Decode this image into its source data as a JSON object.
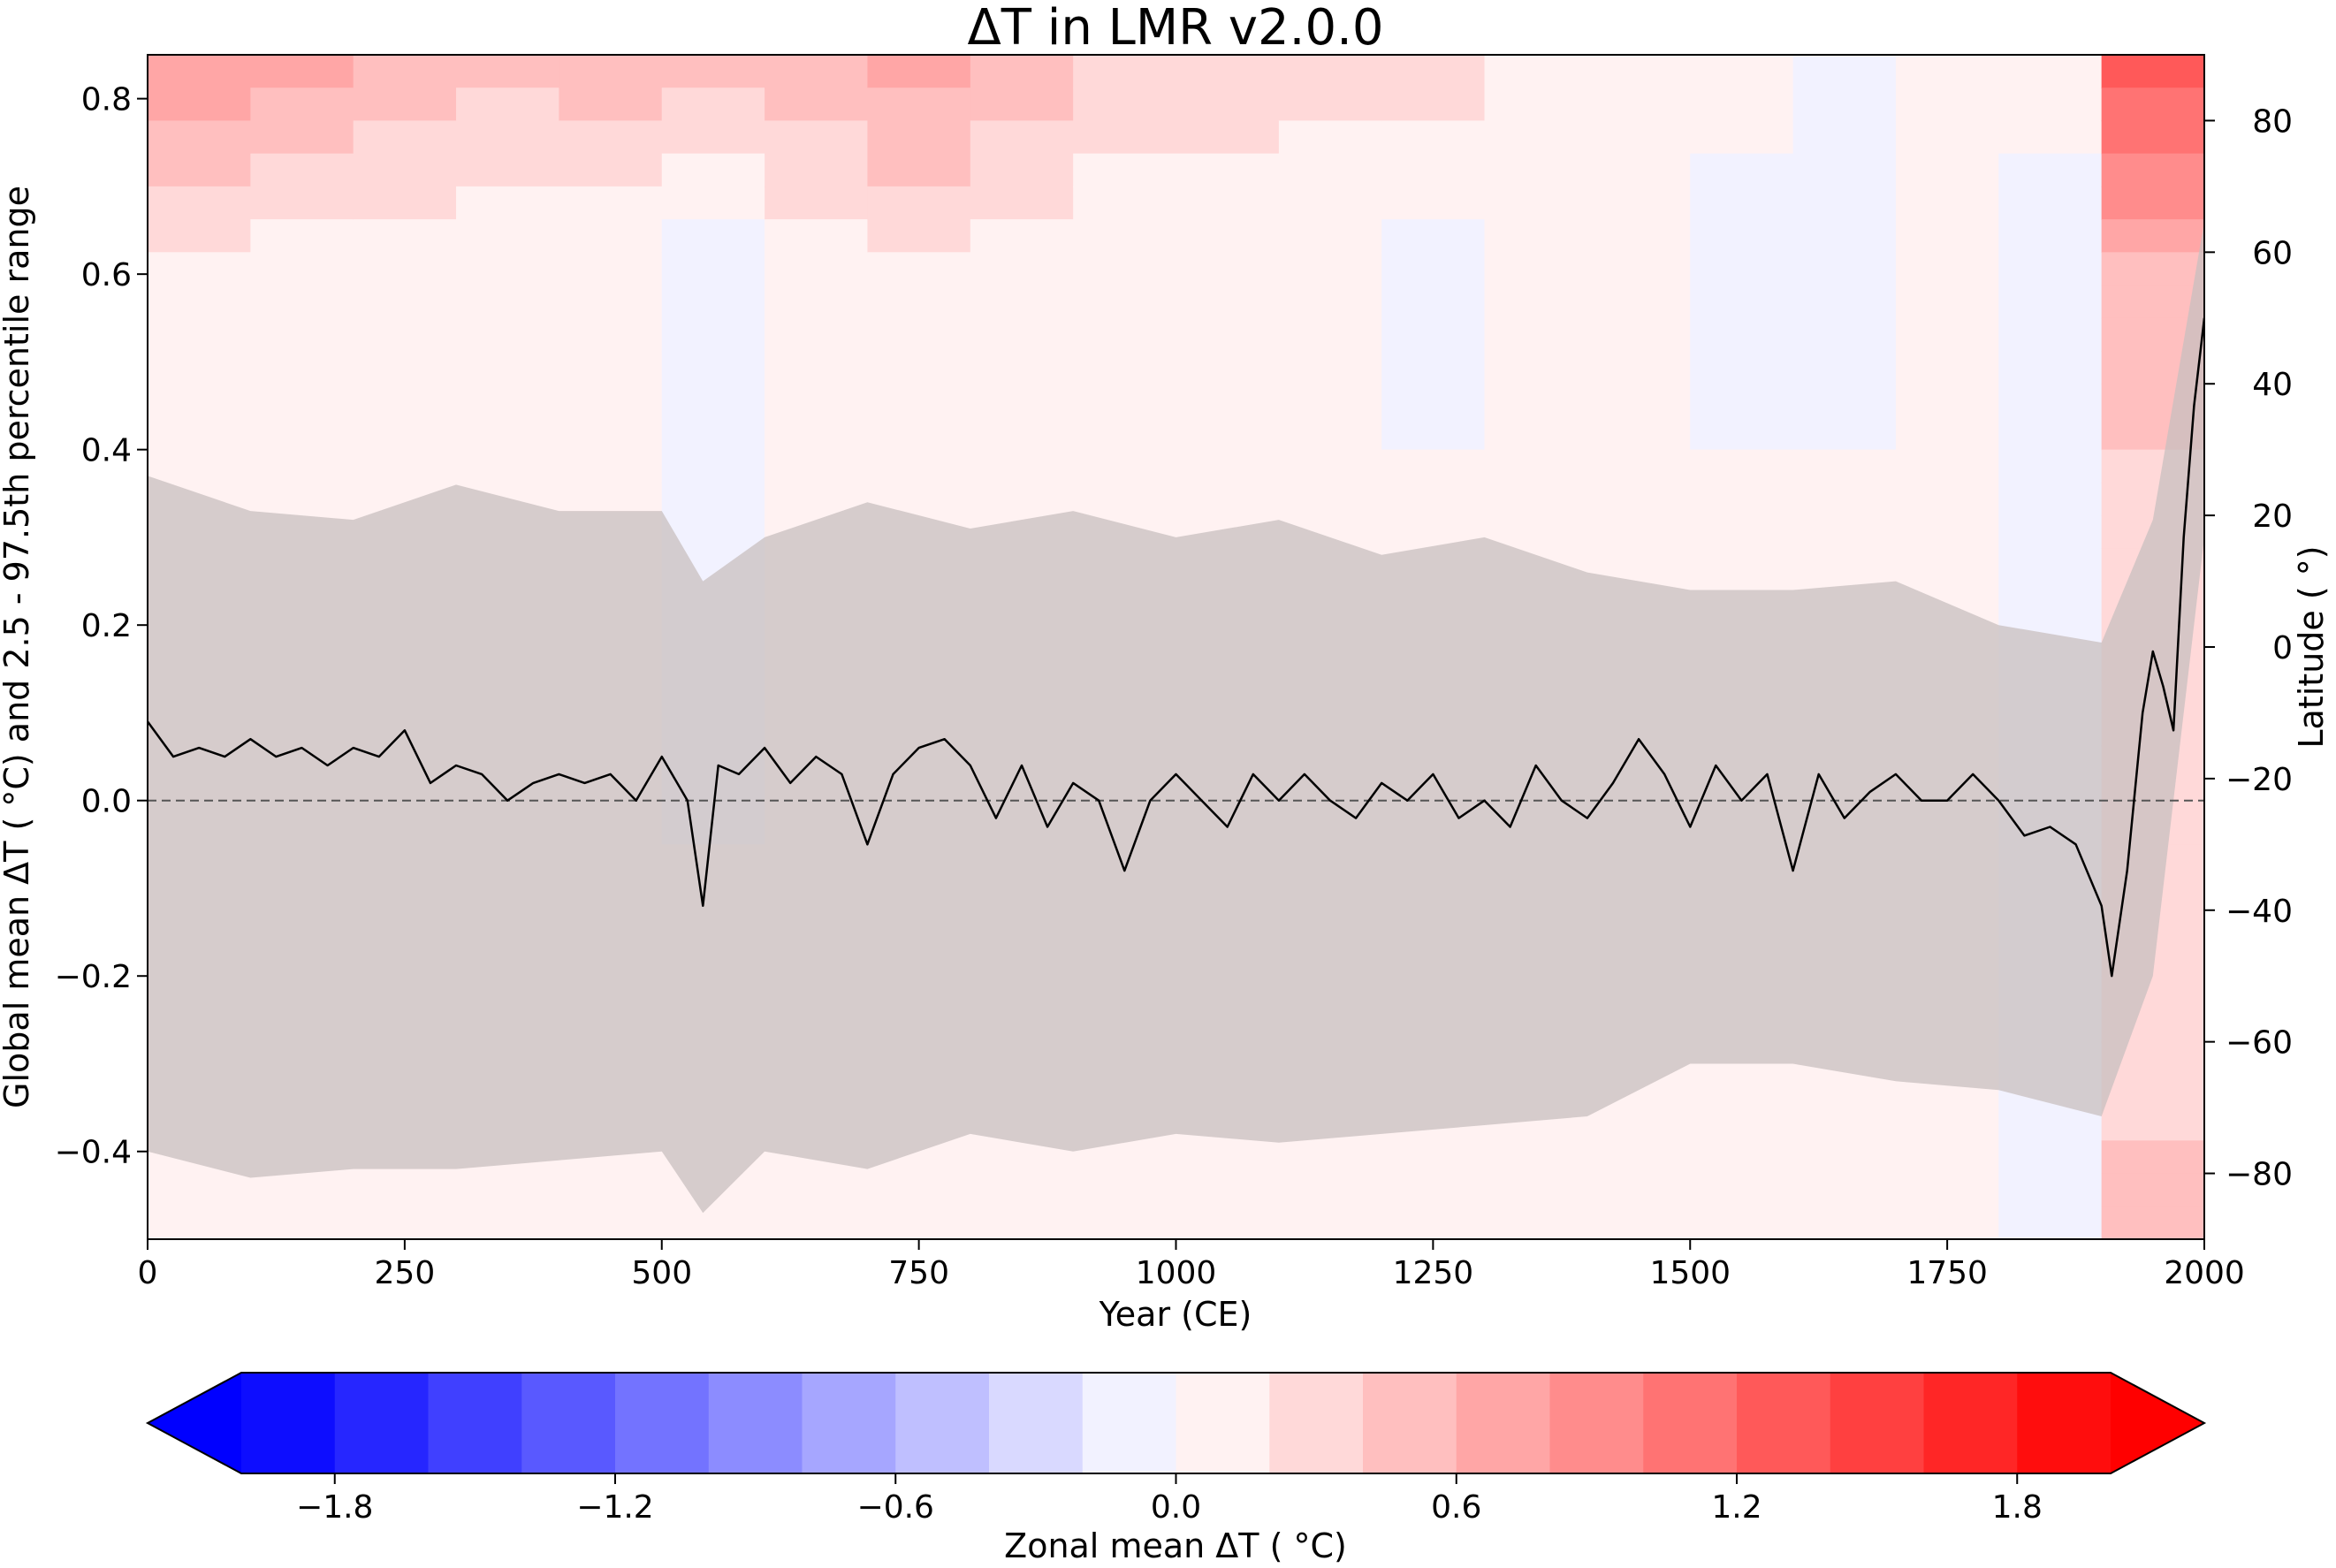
{
  "chart_data": {
    "type": "heatmap",
    "title": "ΔT in LMR v2.0.0",
    "xlabel": "Year (CE)",
    "ylabel": "Global mean ΔT ($^\\circ$C) and 2.5 - 97.5th percentile range",
    "ylabel_display": "Global mean ΔT ( °C) and 2.5 - 97.5th percentile range",
    "y2label": "Latitude ( °)",
    "xlim": [
      0,
      2000
    ],
    "ylim": [
      -0.5,
      0.85
    ],
    "y2lim": [
      -90,
      90
    ],
    "x_ticks": [
      0,
      250,
      500,
      750,
      1000,
      1250,
      1500,
      1750,
      2000
    ],
    "y_ticks": [
      -0.4,
      -0.2,
      0.0,
      0.2,
      0.4,
      0.6,
      0.8
    ],
    "y_tick_labels": [
      "−0.4",
      "−0.2",
      "0.0",
      "0.2",
      "0.4",
      "0.6",
      "0.8"
    ],
    "y2_ticks": [
      -80,
      -60,
      -40,
      -20,
      0,
      20,
      40,
      60,
      80
    ],
    "y2_tick_labels": [
      "−80",
      "−60",
      "−40",
      "−20",
      "0",
      "20",
      "40",
      "60",
      "80"
    ],
    "x_tick_labels": [
      "0",
      "250",
      "500",
      "750",
      "1000",
      "1250",
      "1500",
      "1750",
      "2000"
    ],
    "reference_line": {
      "y": 0.0,
      "style": "dashed",
      "color": "#555555"
    },
    "heatmap": {
      "description_key": "zonal mean ΔT by year and latitude",
      "note_values_sampled": "values per 100-year block, latitude bands from north to south",
      "latitude_bands": [
        90,
        60,
        30,
        0,
        -30,
        -60,
        -90
      ],
      "centuries": [
        0,
        100,
        200,
        300,
        400,
        500,
        600,
        700,
        800,
        900,
        1000,
        1100,
        1200,
        1300,
        1400,
        1500,
        1600,
        1700,
        1800,
        1900
      ],
      "values": [
        [
          0.8,
          0.7,
          0.6,
          0.5,
          0.6,
          0.5,
          0.5,
          0.7,
          0.6,
          0.4,
          0.4,
          0.3,
          0.3,
          0.2,
          0.2,
          0.1,
          0.0,
          0.1,
          0.1,
          1.4
        ],
        [
          0.2,
          0.1,
          0.1,
          0.0,
          0.0,
          -0.1,
          0.1,
          0.2,
          0.1,
          0.0,
          0.0,
          0.0,
          -0.1,
          0.0,
          0.0,
          -0.1,
          -0.1,
          0.0,
          -0.1,
          0.6
        ],
        [
          0.0,
          0.0,
          0.0,
          0.0,
          0.0,
          0.0,
          0.0,
          0.0,
          0.0,
          0.0,
          0.0,
          0.0,
          0.0,
          0.0,
          0.0,
          0.0,
          0.0,
          0.0,
          -0.1,
          0.4
        ],
        [
          0.05,
          0.0,
          0.05,
          0.0,
          0.0,
          -0.05,
          0.0,
          0.05,
          0.0,
          0.0,
          0.0,
          0.0,
          0.0,
          0.0,
          0.0,
          0.0,
          0.0,
          0.0,
          -0.05,
          0.3
        ],
        [
          0.0,
          0.0,
          0.0,
          0.0,
          0.0,
          0.0,
          0.0,
          0.0,
          0.0,
          0.0,
          0.0,
          0.0,
          0.0,
          0.0,
          0.0,
          0.0,
          0.0,
          0.0,
          -0.1,
          0.3
        ],
        [
          0.05,
          0.0,
          0.0,
          0.0,
          0.05,
          0.0,
          0.05,
          0.0,
          0.05,
          0.0,
          0.0,
          0.05,
          0.0,
          0.0,
          0.0,
          0.0,
          0.0,
          0.0,
          -0.2,
          0.3
        ],
        [
          0.1,
          0.1,
          0.1,
          0.1,
          0.1,
          0.1,
          0.1,
          0.1,
          0.1,
          0.1,
          0.1,
          0.1,
          0.1,
          0.05,
          0.05,
          0.05,
          0.05,
          0.05,
          -0.1,
          0.5
        ]
      ]
    },
    "series": [
      {
        "name": "Global mean ΔT",
        "color": "#000000",
        "x": [
          0,
          25,
          50,
          75,
          100,
          125,
          150,
          175,
          200,
          225,
          250,
          275,
          300,
          325,
          350,
          375,
          400,
          425,
          450,
          475,
          500,
          525,
          540,
          555,
          575,
          600,
          625,
          650,
          675,
          700,
          725,
          750,
          775,
          800,
          825,
          850,
          875,
          900,
          925,
          950,
          975,
          1000,
          1025,
          1050,
          1075,
          1100,
          1125,
          1150,
          1175,
          1200,
          1225,
          1250,
          1275,
          1300,
          1325,
          1350,
          1375,
          1400,
          1425,
          1450,
          1475,
          1500,
          1525,
          1550,
          1575,
          1600,
          1625,
          1650,
          1675,
          1700,
          1725,
          1750,
          1775,
          1800,
          1825,
          1850,
          1875,
          1900,
          1910,
          1925,
          1940,
          1950,
          1960,
          1970,
          1980,
          1990,
          2000
        ],
        "y": [
          0.09,
          0.05,
          0.06,
          0.05,
          0.07,
          0.05,
          0.06,
          0.04,
          0.06,
          0.05,
          0.08,
          0.02,
          0.04,
          0.03,
          0.0,
          0.02,
          0.03,
          0.02,
          0.03,
          0.0,
          0.05,
          0.0,
          -0.12,
          0.04,
          0.03,
          0.06,
          0.02,
          0.05,
          0.03,
          -0.05,
          0.03,
          0.06,
          0.07,
          0.04,
          -0.02,
          0.04,
          -0.03,
          0.02,
          0.0,
          -0.08,
          0.0,
          0.03,
          0.0,
          -0.03,
          0.03,
          0.0,
          0.03,
          0.0,
          -0.02,
          0.02,
          0.0,
          0.03,
          -0.02,
          0.0,
          -0.03,
          0.04,
          0.0,
          -0.02,
          0.02,
          0.07,
          0.03,
          -0.03,
          0.04,
          0.0,
          0.03,
          -0.08,
          0.03,
          -0.02,
          0.01,
          0.03,
          0.0,
          0.0,
          0.03,
          0.0,
          -0.04,
          -0.03,
          -0.05,
          -0.12,
          -0.2,
          -0.08,
          0.1,
          0.17,
          0.13,
          0.08,
          0.3,
          0.45,
          0.55
        ]
      }
    ],
    "bands": [
      {
        "name": "2.5 - 97.5th percentile range",
        "color": "#c8bfbf",
        "x": [
          0,
          100,
          200,
          300,
          400,
          500,
          540,
          600,
          700,
          800,
          900,
          1000,
          1100,
          1200,
          1300,
          1400,
          1500,
          1600,
          1700,
          1800,
          1900,
          1950,
          2000
        ],
        "upper": [
          0.37,
          0.33,
          0.32,
          0.36,
          0.33,
          0.33,
          0.25,
          0.3,
          0.34,
          0.31,
          0.33,
          0.3,
          0.32,
          0.28,
          0.3,
          0.26,
          0.24,
          0.24,
          0.25,
          0.2,
          0.18,
          0.32,
          0.66
        ],
        "lower": [
          -0.4,
          -0.43,
          -0.42,
          -0.42,
          -0.41,
          -0.4,
          -0.47,
          -0.4,
          -0.42,
          -0.38,
          -0.4,
          -0.38,
          -0.39,
          -0.38,
          -0.37,
          -0.36,
          -0.3,
          -0.3,
          -0.32,
          -0.33,
          -0.36,
          -0.2,
          0.3
        ]
      }
    ],
    "colorbar": {
      "label": "Zonal mean ΔT ( °C)",
      "ticks": [
        -1.8,
        -1.2,
        -0.6,
        0.0,
        0.6,
        1.2,
        1.8
      ],
      "tick_labels": [
        "−1.8",
        "−1.2",
        "−0.6",
        "0.0",
        "0.6",
        "1.2",
        "1.8"
      ],
      "levels": [
        -2.0,
        -1.8,
        -1.6,
        -1.4,
        -1.2,
        -1.0,
        -0.8,
        -0.6,
        -0.4,
        -0.2,
        0.0,
        0.2,
        0.4,
        0.6,
        0.8,
        1.0,
        1.2,
        1.4,
        1.6,
        1.8,
        2.0
      ],
      "extend": "both",
      "colormap": "bwr"
    }
  }
}
